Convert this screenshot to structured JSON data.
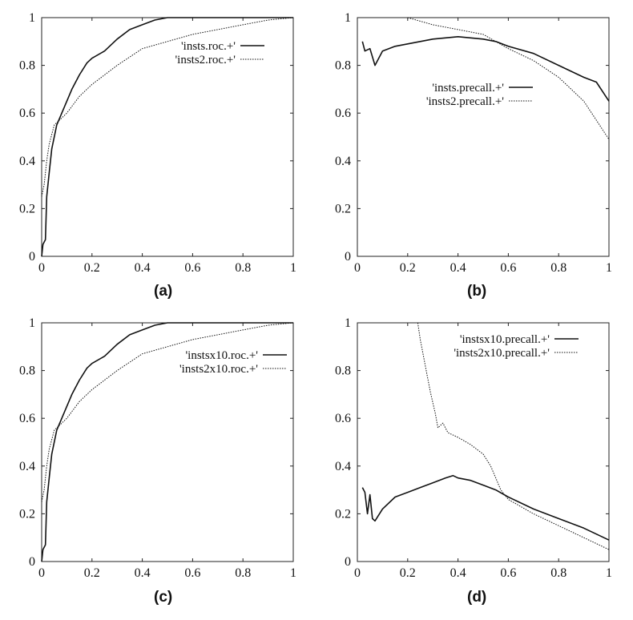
{
  "chart_data": [
    {
      "type": "line",
      "panel_label": "(a)",
      "xlim": [
        0,
        1
      ],
      "ylim": [
        0,
        1
      ],
      "x_ticks": [
        "0",
        "0.2",
        "0.4",
        "0.6",
        "0.8",
        "1"
      ],
      "y_ticks": [
        "0",
        "0.2",
        "0.4",
        "0.6",
        "0.8",
        "1"
      ],
      "grid": false,
      "legend_position": "top-right",
      "series": [
        {
          "name": "'insts.roc.+'",
          "style": "solid",
          "points": [
            [
              0,
              0
            ],
            [
              0.005,
              0.05
            ],
            [
              0.015,
              0.07
            ],
            [
              0.02,
              0.25
            ],
            [
              0.03,
              0.35
            ],
            [
              0.04,
              0.45
            ],
            [
              0.05,
              0.5
            ],
            [
              0.06,
              0.55
            ],
            [
              0.08,
              0.6
            ],
            [
              0.1,
              0.65
            ],
            [
              0.12,
              0.7
            ],
            [
              0.15,
              0.76
            ],
            [
              0.18,
              0.81
            ],
            [
              0.2,
              0.83
            ],
            [
              0.25,
              0.86
            ],
            [
              0.3,
              0.91
            ],
            [
              0.35,
              0.95
            ],
            [
              0.4,
              0.97
            ],
            [
              0.45,
              0.99
            ],
            [
              0.5,
              1.0
            ],
            [
              1.0,
              1.0
            ]
          ]
        },
        {
          "name": "'insts2.roc.+'",
          "style": "dotted",
          "points": [
            [
              0,
              0.25
            ],
            [
              0.01,
              0.3
            ],
            [
              0.02,
              0.4
            ],
            [
              0.03,
              0.47
            ],
            [
              0.05,
              0.55
            ],
            [
              0.08,
              0.58
            ],
            [
              0.1,
              0.6
            ],
            [
              0.15,
              0.67
            ],
            [
              0.2,
              0.72
            ],
            [
              0.3,
              0.8
            ],
            [
              0.4,
              0.87
            ],
            [
              0.5,
              0.9
            ],
            [
              0.6,
              0.93
            ],
            [
              0.7,
              0.95
            ],
            [
              0.8,
              0.97
            ],
            [
              0.9,
              0.99
            ],
            [
              1.0,
              1.0
            ]
          ]
        }
      ]
    },
    {
      "type": "line",
      "panel_label": "(b)",
      "xlim": [
        0,
        1
      ],
      "ylim": [
        0,
        1
      ],
      "x_ticks": [
        "0",
        "0.2",
        "0.4",
        "0.6",
        "0.8",
        "1"
      ],
      "y_ticks": [
        "0",
        "0.2",
        "0.4",
        "0.6",
        "0.8",
        "1"
      ],
      "grid": false,
      "legend_position": "upper-right",
      "series": [
        {
          "name": "'insts.precall.+'",
          "style": "solid",
          "points": [
            [
              0.02,
              0.9
            ],
            [
              0.03,
              0.86
            ],
            [
              0.05,
              0.87
            ],
            [
              0.07,
              0.8
            ],
            [
              0.1,
              0.86
            ],
            [
              0.15,
              0.88
            ],
            [
              0.2,
              0.89
            ],
            [
              0.3,
              0.91
            ],
            [
              0.4,
              0.92
            ],
            [
              0.5,
              0.91
            ],
            [
              0.55,
              0.9
            ],
            [
              0.6,
              0.88
            ],
            [
              0.7,
              0.85
            ],
            [
              0.8,
              0.8
            ],
            [
              0.9,
              0.75
            ],
            [
              0.95,
              0.73
            ],
            [
              1.0,
              0.65
            ]
          ]
        },
        {
          "name": "'insts2.precall.+'",
          "style": "dotted",
          "points": [
            [
              0.2,
              1.0
            ],
            [
              0.3,
              0.97
            ],
            [
              0.4,
              0.95
            ],
            [
              0.5,
              0.93
            ],
            [
              0.55,
              0.9
            ],
            [
              0.6,
              0.87
            ],
            [
              0.7,
              0.82
            ],
            [
              0.8,
              0.75
            ],
            [
              0.85,
              0.7
            ],
            [
              0.9,
              0.65
            ],
            [
              0.95,
              0.57
            ],
            [
              1.0,
              0.49
            ]
          ]
        }
      ]
    },
    {
      "type": "line",
      "panel_label": "(c)",
      "xlim": [
        0,
        1
      ],
      "ylim": [
        0,
        1
      ],
      "x_ticks": [
        "0",
        "0.2",
        "0.4",
        "0.6",
        "0.8",
        "1"
      ],
      "y_ticks": [
        "0",
        "0.2",
        "0.4",
        "0.6",
        "0.8",
        "1"
      ],
      "grid": false,
      "legend_position": "top-right",
      "series": [
        {
          "name": "'instsx10.roc.+'",
          "style": "solid",
          "points": [
            [
              0,
              0
            ],
            [
              0.005,
              0.05
            ],
            [
              0.015,
              0.07
            ],
            [
              0.02,
              0.25
            ],
            [
              0.03,
              0.35
            ],
            [
              0.04,
              0.45
            ],
            [
              0.05,
              0.5
            ],
            [
              0.06,
              0.55
            ],
            [
              0.08,
              0.6
            ],
            [
              0.1,
              0.65
            ],
            [
              0.12,
              0.7
            ],
            [
              0.15,
              0.76
            ],
            [
              0.18,
              0.81
            ],
            [
              0.2,
              0.83
            ],
            [
              0.25,
              0.86
            ],
            [
              0.3,
              0.91
            ],
            [
              0.35,
              0.95
            ],
            [
              0.4,
              0.97
            ],
            [
              0.45,
              0.99
            ],
            [
              0.5,
              1.0
            ],
            [
              1.0,
              1.0
            ]
          ]
        },
        {
          "name": "'insts2x10.roc.+'",
          "style": "dotted",
          "points": [
            [
              0,
              0.25
            ],
            [
              0.01,
              0.3
            ],
            [
              0.02,
              0.4
            ],
            [
              0.03,
              0.47
            ],
            [
              0.05,
              0.55
            ],
            [
              0.08,
              0.58
            ],
            [
              0.1,
              0.6
            ],
            [
              0.15,
              0.67
            ],
            [
              0.2,
              0.72
            ],
            [
              0.3,
              0.8
            ],
            [
              0.4,
              0.87
            ],
            [
              0.5,
              0.9
            ],
            [
              0.6,
              0.93
            ],
            [
              0.7,
              0.95
            ],
            [
              0.8,
              0.97
            ],
            [
              0.9,
              0.99
            ],
            [
              1.0,
              1.0
            ]
          ]
        }
      ]
    },
    {
      "type": "line",
      "panel_label": "(d)",
      "xlim": [
        0,
        1
      ],
      "ylim": [
        0,
        1
      ],
      "x_ticks": [
        "0",
        "0.2",
        "0.4",
        "0.6",
        "0.8",
        "1"
      ],
      "y_ticks": [
        "0",
        "0.2",
        "0.4",
        "0.6",
        "0.8",
        "1"
      ],
      "grid": false,
      "legend_position": "top-right",
      "series": [
        {
          "name": "'instsx10.precall.+'",
          "style": "solid",
          "points": [
            [
              0.02,
              0.31
            ],
            [
              0.03,
              0.29
            ],
            [
              0.04,
              0.2
            ],
            [
              0.05,
              0.28
            ],
            [
              0.06,
              0.18
            ],
            [
              0.07,
              0.17
            ],
            [
              0.1,
              0.22
            ],
            [
              0.15,
              0.27
            ],
            [
              0.2,
              0.29
            ],
            [
              0.25,
              0.31
            ],
            [
              0.3,
              0.33
            ],
            [
              0.35,
              0.35
            ],
            [
              0.38,
              0.36
            ],
            [
              0.4,
              0.35
            ],
            [
              0.45,
              0.34
            ],
            [
              0.5,
              0.32
            ],
            [
              0.55,
              0.3
            ],
            [
              0.6,
              0.27
            ],
            [
              0.7,
              0.22
            ],
            [
              0.8,
              0.18
            ],
            [
              0.9,
              0.14
            ],
            [
              1.0,
              0.09
            ]
          ]
        },
        {
          "name": "'insts2x10.precall.+'",
          "style": "dotted",
          "points": [
            [
              0.24,
              1.0
            ],
            [
              0.25,
              0.93
            ],
            [
              0.27,
              0.82
            ],
            [
              0.29,
              0.71
            ],
            [
              0.31,
              0.62
            ],
            [
              0.32,
              0.56
            ],
            [
              0.34,
              0.58
            ],
            [
              0.36,
              0.54
            ],
            [
              0.4,
              0.52
            ],
            [
              0.45,
              0.49
            ],
            [
              0.5,
              0.45
            ],
            [
              0.53,
              0.4
            ],
            [
              0.55,
              0.35
            ],
            [
              0.57,
              0.3
            ],
            [
              0.6,
              0.26
            ],
            [
              0.7,
              0.2
            ],
            [
              0.8,
              0.15
            ],
            [
              0.9,
              0.1
            ],
            [
              1.0,
              0.05
            ]
          ]
        }
      ]
    }
  ]
}
